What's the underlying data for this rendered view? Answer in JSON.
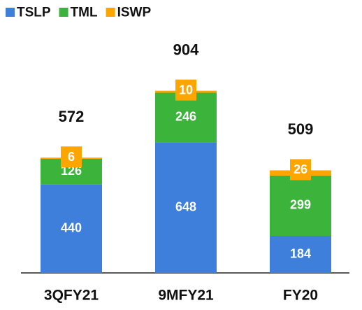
{
  "chart_data": {
    "type": "stacked_bar",
    "categories": [
      "3QFY21",
      "9MFY21",
      "FY20"
    ],
    "series": [
      {
        "name": "TSLP",
        "color": "#3f7fdc",
        "values": [
          440,
          648,
          184
        ]
      },
      {
        "name": "TML",
        "color": "#3cb43c",
        "values": [
          126,
          246,
          299
        ]
      },
      {
        "name": "ISWP",
        "color": "#ffa500",
        "values": [
          6,
          10,
          26
        ]
      }
    ],
    "totals": [
      572,
      904,
      509
    ],
    "ylim": [
      0,
      1000
    ]
  }
}
